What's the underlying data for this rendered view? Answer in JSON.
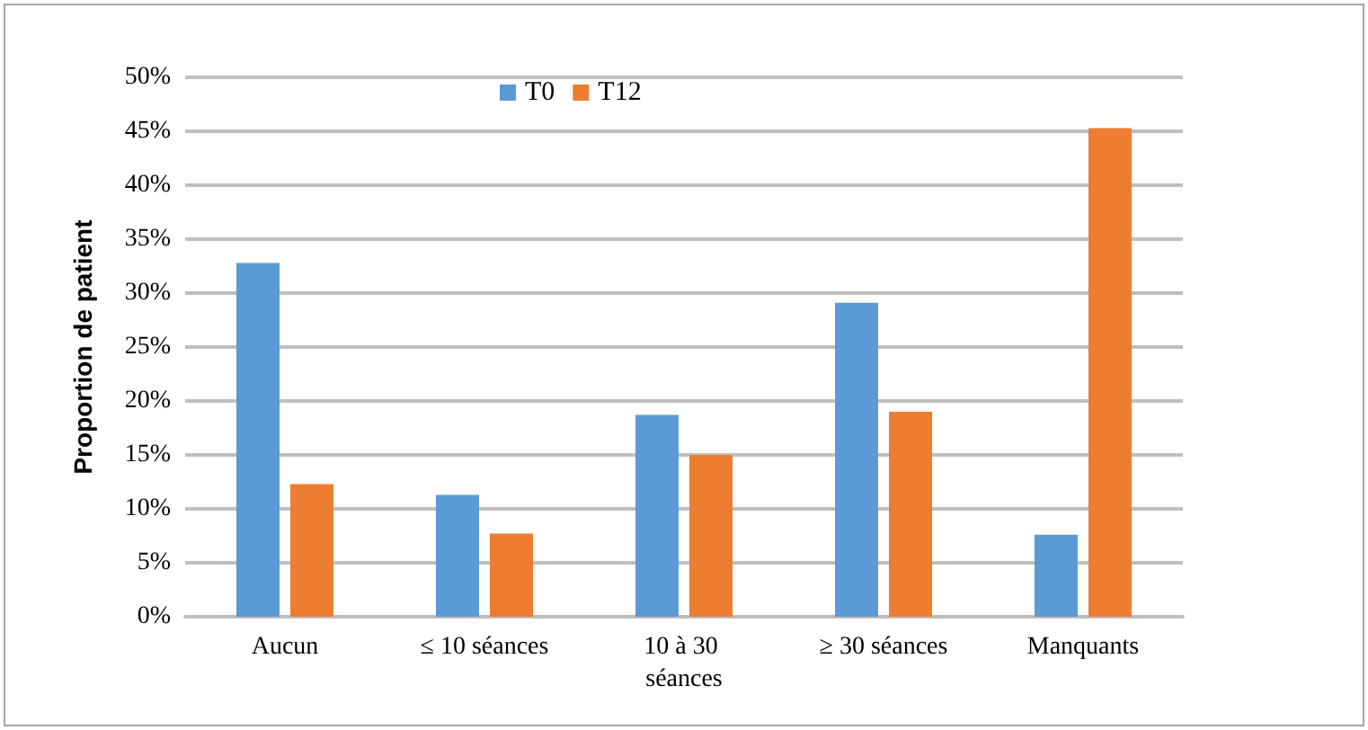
{
  "chart_data": {
    "type": "bar",
    "ylabel": "Proportion de patient",
    "categories": [
      "Aucun",
      "≤ 10 séances",
      "10 à 30 séances",
      "≥ 30 séances",
      "Manquants"
    ],
    "series": [
      {
        "name": "T0",
        "color": "#5b9bd5",
        "values": [
          32.8,
          11.3,
          18.7,
          29.1,
          7.6
        ]
      },
      {
        "name": "T12",
        "color": "#ed7d31",
        "values": [
          12.3,
          7.7,
          15.0,
          19.0,
          45.3
        ]
      }
    ],
    "ylim": [
      0,
      50
    ],
    "yticks": [
      {
        "value": 0,
        "label": "0%"
      },
      {
        "value": 5,
        "label": "5%"
      },
      {
        "value": 10,
        "label": "10%"
      },
      {
        "value": 15,
        "label": "15%"
      },
      {
        "value": 20,
        "label": "20%"
      },
      {
        "value": 25,
        "label": "25%"
      },
      {
        "value": 30,
        "label": "30%"
      },
      {
        "value": 35,
        "label": "35%"
      },
      {
        "value": 40,
        "label": "40%"
      },
      {
        "value": 45,
        "label": "45%"
      },
      {
        "value": 50,
        "label": "50%"
      }
    ],
    "grid": "y",
    "legend": "top"
  }
}
